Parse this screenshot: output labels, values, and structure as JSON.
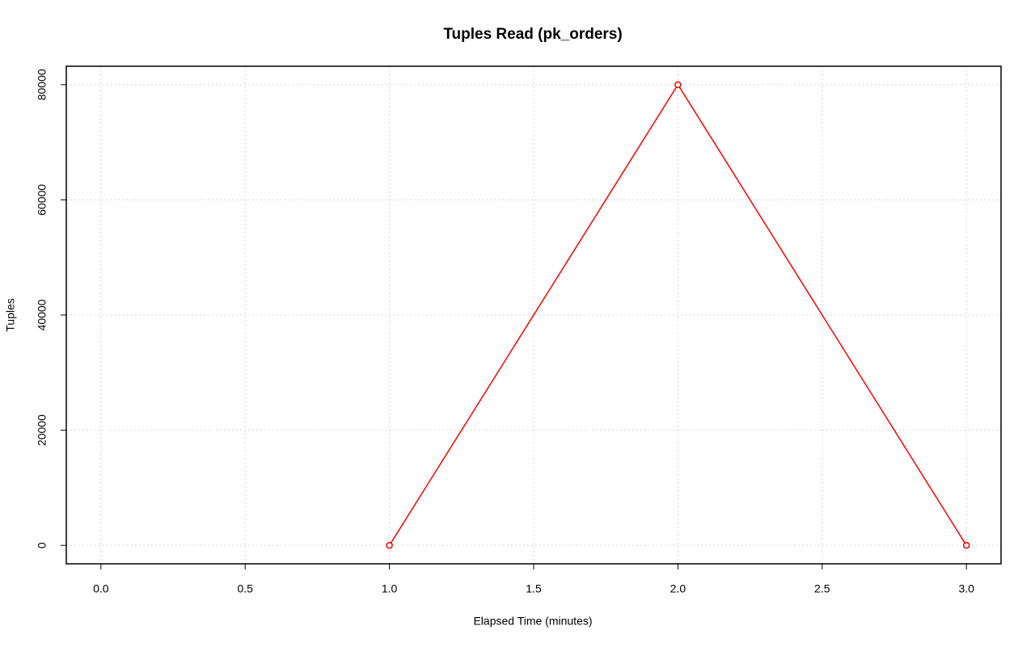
{
  "chart_data": {
    "type": "line",
    "title": "Tuples Read (pk_orders)",
    "x_label": "Elapsed Time (minutes)",
    "y_label": "Tuples",
    "x": [
      1,
      2,
      3
    ],
    "series": [
      {
        "color": "#ff0000",
        "values": [
          0,
          80000,
          0
        ]
      }
    ],
    "xlim": [
      -0.12,
      3.12
    ],
    "ylim": [
      -3200,
      83200
    ],
    "xticks": [
      {
        "value": 0,
        "label": "0.0"
      },
      {
        "value": 0.5,
        "label": "0.5"
      },
      {
        "value": 1,
        "label": "1.0"
      },
      {
        "value": 1.5,
        "label": "1.5"
      },
      {
        "value": 2,
        "label": "2.0"
      },
      {
        "value": 2.5,
        "label": "2.5"
      },
      {
        "value": 3,
        "label": "3.0"
      }
    ],
    "yticks": [
      0,
      20000,
      40000,
      60000,
      80000
    ],
    "grid": true
  }
}
